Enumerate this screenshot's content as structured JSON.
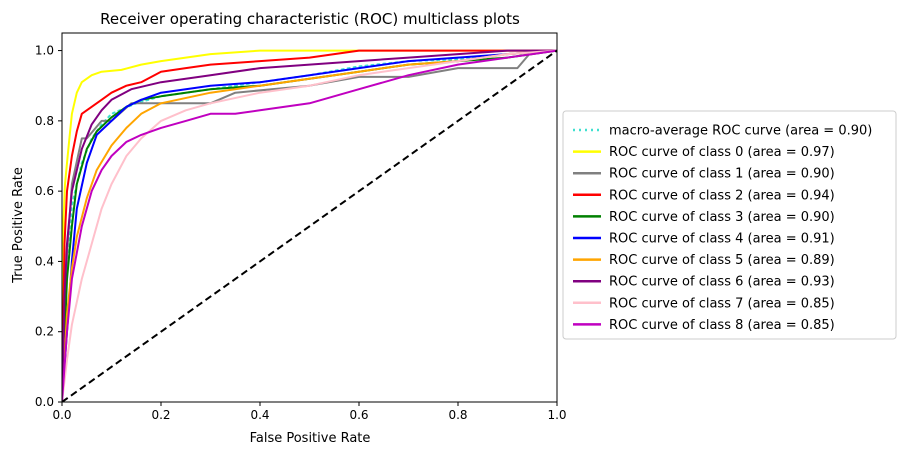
{
  "chart_data": {
    "type": "line",
    "title": "Receiver operating characteristic (ROC) multiclass plots",
    "xlabel": "False Positive Rate",
    "ylabel": "True Positive Rate",
    "xlim": [
      0.0,
      1.0
    ],
    "ylim": [
      0.0,
      1.05
    ],
    "xticks": [
      0.0,
      0.2,
      0.4,
      0.6,
      0.8,
      1.0
    ],
    "yticks": [
      0.0,
      0.2,
      0.4,
      0.6,
      0.8,
      1.0
    ],
    "xtick_labels": [
      "0.0",
      "0.2",
      "0.4",
      "0.6",
      "0.8",
      "1.0"
    ],
    "ytick_labels": [
      "0.0",
      "0.2",
      "0.4",
      "0.6",
      "0.8",
      "1.0"
    ],
    "grid": false,
    "legend_position": "outside-right",
    "series": [
      {
        "name": "macro-average ROC curve (area = 0.90)",
        "color": "#40e0d0",
        "style": "dotted",
        "x": [
          0,
          0.01,
          0.02,
          0.04,
          0.06,
          0.08,
          0.1,
          0.15,
          0.2,
          0.3,
          0.4,
          0.5,
          0.6,
          0.7,
          0.8,
          0.9,
          1.0
        ],
        "y": [
          0,
          0.4,
          0.56,
          0.68,
          0.75,
          0.79,
          0.82,
          0.85,
          0.87,
          0.89,
          0.91,
          0.93,
          0.955,
          0.97,
          0.975,
          0.99,
          1.0
        ]
      },
      {
        "name": "ROC curve of class 0 (area = 0.97)",
        "color": "#ffff00",
        "style": "solid",
        "x": [
          0,
          0.003,
          0.006,
          0.01,
          0.015,
          0.02,
          0.03,
          0.04,
          0.06,
          0.08,
          0.12,
          0.16,
          0.2,
          0.25,
          0.3,
          0.4,
          0.6,
          0.8,
          1.0
        ],
        "y": [
          0,
          0.52,
          0.62,
          0.68,
          0.75,
          0.82,
          0.88,
          0.91,
          0.93,
          0.94,
          0.945,
          0.96,
          0.97,
          0.98,
          0.99,
          1.0,
          1.0,
          1.0,
          1.0
        ]
      },
      {
        "name": "ROC curve of class 1 (area = 0.90)",
        "color": "#808080",
        "style": "solid",
        "x": [
          0,
          0.01,
          0.02,
          0.04,
          0.05,
          0.08,
          0.1,
          0.14,
          0.2,
          0.22,
          0.3,
          0.35,
          0.5,
          0.6,
          0.7,
          0.8,
          0.92,
          0.95,
          1.0
        ],
        "y": [
          0,
          0.42,
          0.62,
          0.75,
          0.75,
          0.8,
          0.8,
          0.85,
          0.85,
          0.85,
          0.85,
          0.88,
          0.9,
          0.925,
          0.925,
          0.95,
          0.95,
          1.0,
          1.0
        ]
      },
      {
        "name": "ROC curve of class 2 (area = 0.94)",
        "color": "#ff0000",
        "style": "solid",
        "x": [
          0,
          0.005,
          0.01,
          0.02,
          0.03,
          0.04,
          0.06,
          0.08,
          0.1,
          0.13,
          0.16,
          0.2,
          0.25,
          0.3,
          0.4,
          0.5,
          0.6,
          0.7,
          0.8,
          1.0
        ],
        "y": [
          0,
          0.45,
          0.6,
          0.7,
          0.77,
          0.82,
          0.84,
          0.86,
          0.88,
          0.9,
          0.91,
          0.94,
          0.95,
          0.96,
          0.97,
          0.98,
          1.0,
          1.0,
          1.0,
          1.0
        ]
      },
      {
        "name": "ROC curve of class 3 (area = 0.90)",
        "color": "#008000",
        "style": "solid",
        "x": [
          0,
          0.01,
          0.02,
          0.03,
          0.05,
          0.07,
          0.1,
          0.13,
          0.16,
          0.2,
          0.3,
          0.4,
          0.5,
          0.6,
          0.7,
          0.8,
          0.9,
          1.0
        ],
        "y": [
          0,
          0.35,
          0.5,
          0.62,
          0.72,
          0.77,
          0.81,
          0.84,
          0.86,
          0.87,
          0.89,
          0.9,
          0.92,
          0.94,
          0.96,
          0.97,
          0.98,
          1.0
        ]
      },
      {
        "name": "ROC curve of class 4 (area = 0.91)",
        "color": "#0000ff",
        "style": "solid",
        "x": [
          0,
          0.01,
          0.02,
          0.03,
          0.05,
          0.07,
          0.1,
          0.13,
          0.16,
          0.2,
          0.3,
          0.4,
          0.5,
          0.6,
          0.7,
          0.8,
          0.9,
          1.0
        ],
        "y": [
          0,
          0.2,
          0.4,
          0.55,
          0.68,
          0.76,
          0.8,
          0.84,
          0.86,
          0.88,
          0.9,
          0.91,
          0.93,
          0.95,
          0.97,
          0.98,
          0.99,
          1.0
        ]
      },
      {
        "name": "ROC curve of class 5 (area = 0.89)",
        "color": "#ffa500",
        "style": "solid",
        "x": [
          0,
          0.01,
          0.02,
          0.03,
          0.05,
          0.07,
          0.1,
          0.13,
          0.16,
          0.2,
          0.3,
          0.4,
          0.5,
          0.6,
          0.7,
          0.8,
          0.9,
          1.0
        ],
        "y": [
          0,
          0.25,
          0.38,
          0.47,
          0.58,
          0.66,
          0.73,
          0.78,
          0.82,
          0.85,
          0.88,
          0.9,
          0.92,
          0.94,
          0.96,
          0.97,
          0.99,
          1.0
        ]
      },
      {
        "name": "ROC curve of class 6 (area = 0.93)",
        "color": "#800080",
        "style": "solid",
        "x": [
          0,
          0.005,
          0.01,
          0.02,
          0.04,
          0.06,
          0.08,
          0.1,
          0.14,
          0.2,
          0.3,
          0.4,
          0.5,
          0.6,
          0.7,
          0.8,
          0.9,
          1.0
        ],
        "y": [
          0,
          0.3,
          0.45,
          0.6,
          0.72,
          0.79,
          0.83,
          0.86,
          0.89,
          0.91,
          0.93,
          0.95,
          0.96,
          0.97,
          0.98,
          0.99,
          1.0,
          1.0
        ]
      },
      {
        "name": "ROC curve of class 7 (area = 0.85)",
        "color": "#ffc0cb",
        "style": "solid",
        "x": [
          0,
          0.01,
          0.02,
          0.04,
          0.06,
          0.08,
          0.1,
          0.13,
          0.16,
          0.2,
          0.25,
          0.3,
          0.4,
          0.5,
          0.6,
          0.7,
          0.8,
          0.9,
          1.0
        ],
        "y": [
          0,
          0.12,
          0.22,
          0.35,
          0.45,
          0.55,
          0.62,
          0.7,
          0.75,
          0.8,
          0.83,
          0.85,
          0.88,
          0.9,
          0.93,
          0.95,
          0.97,
          0.99,
          1.0
        ]
      },
      {
        "name": "ROC curve of class 8 (area = 0.85)",
        "color": "#c000c0",
        "style": "solid",
        "x": [
          0,
          0.01,
          0.02,
          0.04,
          0.06,
          0.08,
          0.1,
          0.13,
          0.16,
          0.2,
          0.25,
          0.3,
          0.35,
          0.4,
          0.5,
          0.6,
          0.7,
          0.8,
          0.9,
          0.95,
          1.0
        ],
        "y": [
          0,
          0.2,
          0.35,
          0.5,
          0.6,
          0.66,
          0.7,
          0.74,
          0.76,
          0.78,
          0.8,
          0.82,
          0.82,
          0.83,
          0.85,
          0.89,
          0.93,
          0.96,
          0.98,
          0.99,
          1.0
        ]
      },
      {
        "name": "",
        "color": "#000000",
        "style": "dashed",
        "x": [
          0,
          1
        ],
        "y": [
          0,
          1
        ]
      }
    ]
  }
}
